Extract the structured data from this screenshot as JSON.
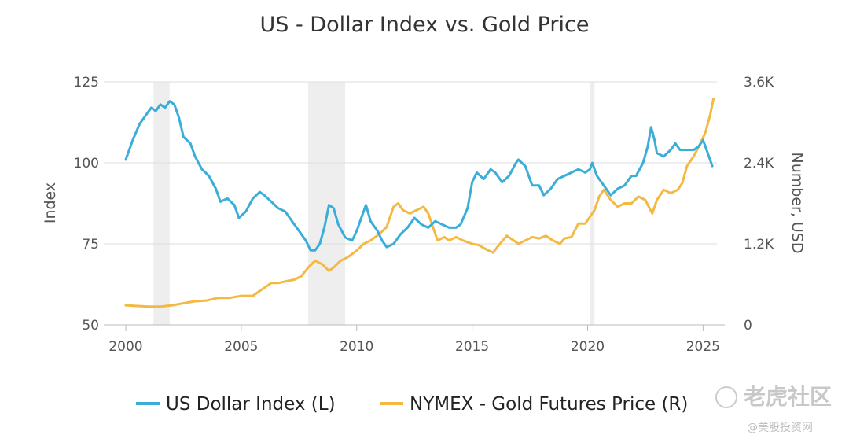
{
  "chart_data": {
    "type": "line",
    "title": "US - Dollar Index vs. Gold Price",
    "y_left_label": "Index",
    "y_right_label": "Number, USD",
    "y_left_range": [
      50,
      125
    ],
    "y_right_range": [
      0,
      3600
    ],
    "x_range": [
      2000,
      2025.6
    ],
    "x_ticks": [
      "2000",
      "2005",
      "2010",
      "2015",
      "2020",
      "2025"
    ],
    "x_tick_values": [
      2000,
      2005,
      2010,
      2015,
      2020,
      2025
    ],
    "y_left_ticks": [
      "50",
      "75",
      "100",
      "125"
    ],
    "y_left_tick_values": [
      50,
      75,
      100,
      125
    ],
    "y_right_ticks": [
      "0",
      "1.2K",
      "2.4K",
      "3.6K"
    ],
    "y_right_tick_values": [
      0,
      1200,
      2400,
      3600
    ],
    "grid": "horizontal",
    "legend_position": "bottom",
    "recession_periods": [
      [
        2001.2,
        2001.9
      ],
      [
        2007.9,
        2009.5
      ],
      [
        2020.1,
        2020.3
      ]
    ],
    "series": [
      {
        "name": "US Dollar Index (L)",
        "axis": "left",
        "color": "#3aaed8",
        "x": [
          2000.0,
          2000.3,
          2000.6,
          2000.9,
          2001.1,
          2001.3,
          2001.5,
          2001.7,
          2001.9,
          2002.1,
          2002.3,
          2002.5,
          2002.8,
          2003.0,
          2003.3,
          2003.6,
          2003.9,
          2004.1,
          2004.4,
          2004.7,
          2004.9,
          2005.2,
          2005.5,
          2005.8,
          2006.0,
          2006.3,
          2006.6,
          2006.9,
          2007.2,
          2007.5,
          2007.8,
          2008.0,
          2008.2,
          2008.4,
          2008.6,
          2008.8,
          2009.0,
          2009.2,
          2009.5,
          2009.8,
          2010.0,
          2010.2,
          2010.4,
          2010.6,
          2010.9,
          2011.1,
          2011.3,
          2011.6,
          2011.9,
          2012.2,
          2012.5,
          2012.8,
          2013.1,
          2013.4,
          2013.7,
          2014.0,
          2014.3,
          2014.5,
          2014.8,
          2015.0,
          2015.2,
          2015.5,
          2015.8,
          2016.0,
          2016.3,
          2016.6,
          2016.9,
          2017.0,
          2017.3,
          2017.6,
          2017.9,
          2018.1,
          2018.4,
          2018.7,
          2019.0,
          2019.3,
          2019.6,
          2019.9,
          2020.1,
          2020.2,
          2020.4,
          2020.7,
          2021.0,
          2021.3,
          2021.6,
          2021.9,
          2022.1,
          2022.4,
          2022.6,
          2022.75,
          2022.9,
          2023.0,
          2023.3,
          2023.6,
          2023.8,
          2024.0,
          2024.3,
          2024.6,
          2024.8,
          2025.0,
          2025.2,
          2025.4
        ],
        "y": [
          101,
          107,
          112,
          115,
          117,
          116,
          118,
          117,
          119,
          118,
          114,
          108,
          106,
          102,
          98,
          96,
          92,
          88,
          89,
          87,
          83,
          85,
          89,
          91,
          90,
          88,
          86,
          85,
          82,
          79,
          76,
          73,
          73,
          75,
          80,
          87,
          86,
          81,
          77,
          76,
          79,
          83,
          87,
          82,
          79,
          76,
          74,
          75,
          78,
          80,
          83,
          81,
          80,
          82,
          81,
          80,
          80,
          81,
          86,
          94,
          97,
          95,
          98,
          97,
          94,
          96,
          100,
          101,
          99,
          93,
          93,
          90,
          92,
          95,
          96,
          97,
          98,
          97,
          98,
          100,
          96,
          93,
          90,
          92,
          93,
          96,
          96,
          100,
          105,
          111,
          107,
          103,
          102,
          104,
          106,
          104,
          104,
          104,
          105,
          107,
          103,
          99
        ]
      },
      {
        "name": "NYMEX - Gold Futures Price (R)",
        "axis": "right",
        "color": "#f4b942",
        "x": [
          2000.0,
          2000.5,
          2001.0,
          2001.5,
          2002.0,
          2002.5,
          2003.0,
          2003.5,
          2004.0,
          2004.5,
          2005.0,
          2005.5,
          2006.0,
          2006.3,
          2006.6,
          2007.0,
          2007.3,
          2007.6,
          2007.9,
          2008.2,
          2008.5,
          2008.8,
          2009.0,
          2009.3,
          2009.6,
          2010.0,
          2010.3,
          2010.6,
          2011.0,
          2011.3,
          2011.6,
          2011.8,
          2012.0,
          2012.3,
          2012.6,
          2012.9,
          2013.1,
          2013.3,
          2013.5,
          2013.8,
          2014.0,
          2014.3,
          2014.6,
          2015.0,
          2015.3,
          2015.6,
          2015.9,
          2016.2,
          2016.5,
          2016.8,
          2017.0,
          2017.3,
          2017.6,
          2017.9,
          2018.2,
          2018.5,
          2018.8,
          2019.0,
          2019.3,
          2019.6,
          2019.9,
          2020.1,
          2020.3,
          2020.5,
          2020.7,
          2021.0,
          2021.3,
          2021.6,
          2021.9,
          2022.2,
          2022.5,
          2022.8,
          2023.0,
          2023.3,
          2023.6,
          2023.9,
          2024.1,
          2024.3,
          2024.6,
          2024.9,
          2025.1,
          2025.3,
          2025.45
        ],
        "y": [
          290,
          280,
          270,
          270,
          290,
          320,
          350,
          360,
          400,
          400,
          430,
          430,
          550,
          620,
          620,
          650,
          670,
          720,
          850,
          950,
          900,
          800,
          850,
          950,
          1000,
          1100,
          1200,
          1250,
          1350,
          1450,
          1750,
          1800,
          1700,
          1650,
          1700,
          1750,
          1650,
          1450,
          1250,
          1300,
          1250,
          1300,
          1250,
          1200,
          1180,
          1120,
          1070,
          1200,
          1320,
          1250,
          1200,
          1250,
          1300,
          1280,
          1320,
          1250,
          1200,
          1280,
          1300,
          1500,
          1500,
          1600,
          1700,
          1900,
          2000,
          1850,
          1750,
          1800,
          1800,
          1900,
          1850,
          1650,
          1850,
          2000,
          1950,
          2000,
          2100,
          2350,
          2500,
          2700,
          2850,
          3100,
          3350
        ]
      }
    ]
  },
  "watermark": {
    "main": "老虎社区",
    "sub": "@美股投资网"
  }
}
